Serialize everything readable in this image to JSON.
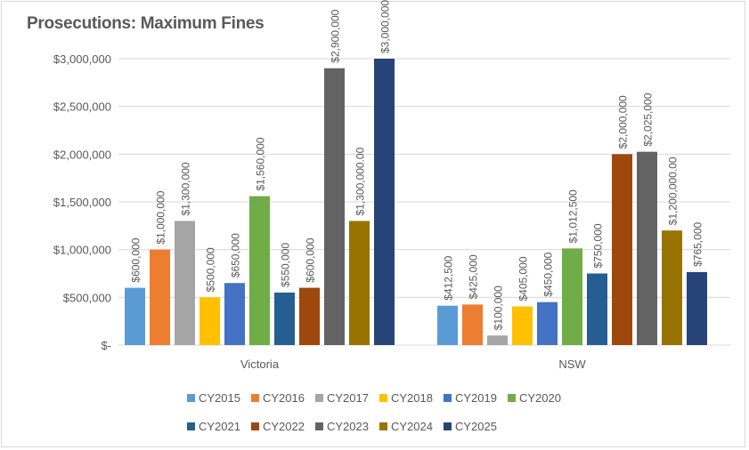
{
  "chart_data": {
    "type": "bar",
    "title": "Prosecutions: Maximum Fines",
    "xlabel": "",
    "ylabel": "",
    "ylim": [
      0,
      3000000
    ],
    "yticks": [
      0,
      500000,
      1000000,
      1500000,
      2000000,
      2500000,
      3000000
    ],
    "ytick_labels": [
      "$-",
      "$500,000",
      "$1,000,000",
      "$1,500,000",
      "$2,000,000",
      "$2,500,000",
      "$3,000,000"
    ],
    "grid": true,
    "legend_position": "bottom",
    "categories": [
      "Victoria",
      "NSW"
    ],
    "series": [
      {
        "name": "CY2015",
        "color": "#5b9bd5",
        "values": [
          600000,
          412500
        ],
        "labels": [
          "$600,000",
          "$412,500"
        ]
      },
      {
        "name": "CY2016",
        "color": "#ed7d31",
        "values": [
          1000000,
          425000
        ],
        "labels": [
          "$1,000,000",
          "$425,000"
        ]
      },
      {
        "name": "CY2017",
        "color": "#a5a5a5",
        "values": [
          1300000,
          100000
        ],
        "labels": [
          "$1,300,000",
          "$100,000"
        ]
      },
      {
        "name": "CY2018",
        "color": "#ffc000",
        "values": [
          500000,
          405000
        ],
        "labels": [
          "$500,000",
          "$405,000"
        ]
      },
      {
        "name": "CY2019",
        "color": "#4472c4",
        "values": [
          650000,
          450000
        ],
        "labels": [
          "$650,000",
          "$450,000"
        ]
      },
      {
        "name": "CY2020",
        "color": "#70ad47",
        "values": [
          1560000,
          1012500
        ],
        "labels": [
          "$1,560,000",
          "$1,012,500"
        ]
      },
      {
        "name": "CY2021",
        "color": "#255e91",
        "values": [
          550000,
          750000
        ],
        "labels": [
          "$550,000",
          "$750,000"
        ]
      },
      {
        "name": "CY2022",
        "color": "#9e480e",
        "values": [
          600000,
          2000000
        ],
        "labels": [
          "$600,000",
          "$2,000,000"
        ]
      },
      {
        "name": "CY2023",
        "color": "#636363",
        "values": [
          2900000,
          2025000
        ],
        "labels": [
          "$2,900,000",
          "$2,025,000"
        ]
      },
      {
        "name": "CY2024",
        "color": "#997300",
        "values": [
          1300000,
          1200000
        ],
        "labels": [
          "$1,300,000.00",
          "$1,200,000.00"
        ]
      },
      {
        "name": "CY2025",
        "color": "#264478",
        "values": [
          3000000,
          765000
        ],
        "labels": [
          "$3,000,000",
          "$765,000"
        ]
      }
    ]
  }
}
